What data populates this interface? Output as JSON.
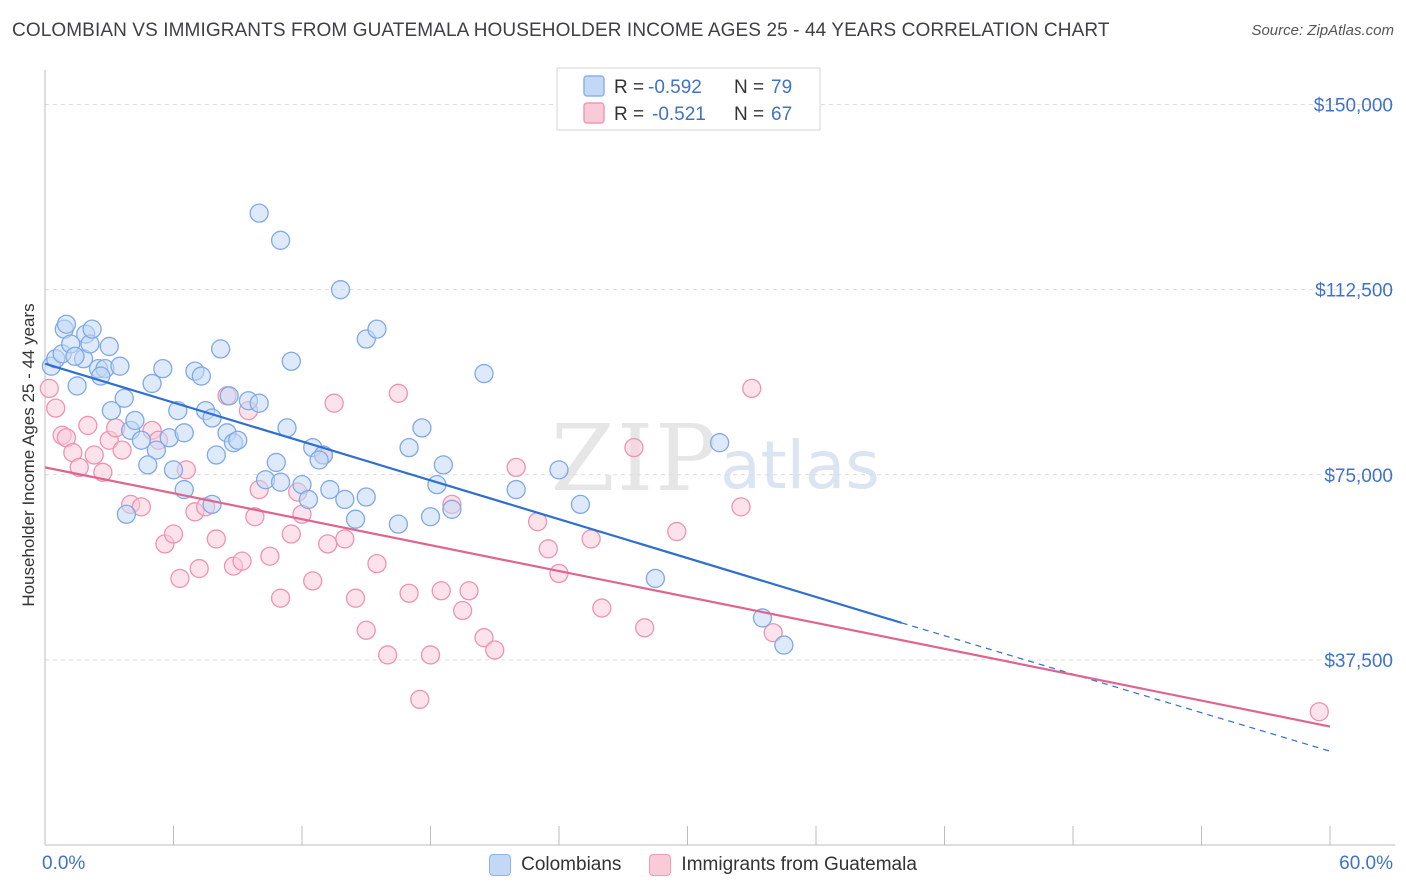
{
  "title": "COLOMBIAN VS IMMIGRANTS FROM GUATEMALA HOUSEHOLDER INCOME AGES 25 - 44 YEARS CORRELATION CHART",
  "source": "Source: ZipAtlas.com",
  "watermark": {
    "zip": "ZIP",
    "atlas": "atlas"
  },
  "colors": {
    "blue_fill": "#c3d8f6",
    "blue_stroke": "#7fa9e6",
    "blue_line": "#2f6fcf",
    "pink_fill": "#f9cbd9",
    "pink_stroke": "#ef93b0",
    "pink_line": "#e0658e",
    "axis_label": "#3f73c9",
    "grid": "#dcdcdc"
  },
  "legend": {
    "blue": {
      "r_label": "R =",
      "r_value": "-0.592",
      "n_label": "N =",
      "n_value": "79"
    },
    "pink": {
      "r_label": "R =",
      "r_value": "-0.521",
      "n_label": "N =",
      "n_value": "67"
    }
  },
  "chart_data": {
    "type": "scatter",
    "ylabel": "Householder Income Ages 25 - 44 years",
    "xlim": [
      0,
      60
    ],
    "ylim": [
      0,
      157000
    ],
    "x_tick_labels": [
      "0.0%",
      "60.0%"
    ],
    "y_ticks": [
      37500,
      75000,
      112500,
      150000
    ],
    "y_tick_labels": [
      "$37,500",
      "$75,000",
      "$112,500",
      "$150,000"
    ],
    "grid": "horizontal dashed",
    "legend_position": "top-center",
    "series": [
      {
        "name": "Colombians",
        "color": "#7fa9e6",
        "trend": {
          "x0": 0,
          "y0": 97500,
          "x1": 40,
          "y1": 45000,
          "dash_to_x": 60,
          "dash_to_y": 19000
        },
        "points": [
          [
            0.3,
            97000
          ],
          [
            0.5,
            98500
          ],
          [
            0.8,
            99500
          ],
          [
            0.9,
            104500
          ],
          [
            1.0,
            105500
          ],
          [
            1.2,
            101500
          ],
          [
            1.5,
            93000
          ],
          [
            1.8,
            98500
          ],
          [
            1.9,
            103500
          ],
          [
            2.1,
            101500
          ],
          [
            2.2,
            104500
          ],
          [
            2.5,
            96500
          ],
          [
            2.8,
            96500
          ],
          [
            3.0,
            101000
          ],
          [
            3.5,
            97000
          ],
          [
            3.7,
            90500
          ],
          [
            4.0,
            84000
          ],
          [
            4.2,
            86000
          ],
          [
            4.5,
            82000
          ],
          [
            5.0,
            93500
          ],
          [
            5.5,
            96500
          ],
          [
            5.8,
            82500
          ],
          [
            6.2,
            88000
          ],
          [
            6.5,
            83500
          ],
          [
            7.0,
            96000
          ],
          [
            7.3,
            95000
          ],
          [
            7.5,
            88000
          ],
          [
            7.8,
            86500
          ],
          [
            8.0,
            79000
          ],
          [
            8.2,
            100500
          ],
          [
            8.5,
            83500
          ],
          [
            8.8,
            81500
          ],
          [
            9.5,
            90000
          ],
          [
            10.0,
            89500
          ],
          [
            10.3,
            74000
          ],
          [
            10.8,
            77500
          ],
          [
            11.0,
            73500
          ],
          [
            11.3,
            84500
          ],
          [
            11.5,
            98000
          ],
          [
            12.0,
            73000
          ],
          [
            12.3,
            70000
          ],
          [
            12.5,
            80500
          ],
          [
            13.0,
            79000
          ],
          [
            13.3,
            72000
          ],
          [
            14.0,
            70000
          ],
          [
            15.0,
            102500
          ],
          [
            15.5,
            104500
          ],
          [
            13.8,
            112500
          ],
          [
            17.0,
            80500
          ],
          [
            17.6,
            84500
          ],
          [
            18.0,
            66500
          ],
          [
            18.3,
            73000
          ],
          [
            18.6,
            77000
          ],
          [
            19.0,
            68000
          ],
          [
            20.5,
            95500
          ],
          [
            11.0,
            122500
          ],
          [
            10.0,
            128000
          ],
          [
            22.0,
            72000
          ],
          [
            24.0,
            76000
          ],
          [
            25.0,
            69000
          ],
          [
            28.5,
            54000
          ],
          [
            31.5,
            81500
          ],
          [
            33.5,
            46000
          ],
          [
            34.5,
            40500
          ],
          [
            3.8,
            67000
          ],
          [
            6.5,
            72000
          ],
          [
            7.8,
            69000
          ],
          [
            12.8,
            78000
          ],
          [
            15.0,
            70500
          ],
          [
            16.5,
            65000
          ],
          [
            9.0,
            82000
          ],
          [
            5.2,
            80000
          ],
          [
            4.8,
            77000
          ],
          [
            2.6,
            95000
          ],
          [
            3.1,
            88000
          ],
          [
            6.0,
            76000
          ],
          [
            8.6,
            91000
          ],
          [
            14.5,
            66000
          ],
          [
            1.4,
            99000
          ]
        ]
      },
      {
        "name": "Immigrants from Guatemala",
        "color": "#ef93b0",
        "trend": {
          "x0": 0,
          "y0": 76500,
          "x1": 60,
          "y1": 24000
        },
        "points": [
          [
            0.2,
            92500
          ],
          [
            0.5,
            88500
          ],
          [
            0.8,
            83000
          ],
          [
            1.0,
            82500
          ],
          [
            1.3,
            79500
          ],
          [
            1.6,
            76500
          ],
          [
            2.0,
            85000
          ],
          [
            2.3,
            79000
          ],
          [
            2.7,
            75500
          ],
          [
            3.0,
            82000
          ],
          [
            3.3,
            84500
          ],
          [
            3.6,
            80000
          ],
          [
            4.0,
            69000
          ],
          [
            4.5,
            68500
          ],
          [
            5.0,
            84000
          ],
          [
            5.3,
            82000
          ],
          [
            5.6,
            61000
          ],
          [
            6.0,
            63000
          ],
          [
            6.3,
            54000
          ],
          [
            6.6,
            76000
          ],
          [
            7.0,
            67500
          ],
          [
            7.5,
            68500
          ],
          [
            8.0,
            62000
          ],
          [
            8.5,
            91000
          ],
          [
            8.8,
            56500
          ],
          [
            9.2,
            57500
          ],
          [
            9.5,
            88000
          ],
          [
            10.0,
            72000
          ],
          [
            10.5,
            58500
          ],
          [
            11.0,
            50000
          ],
          [
            11.5,
            63000
          ],
          [
            12.0,
            67000
          ],
          [
            12.5,
            53500
          ],
          [
            13.0,
            79000
          ],
          [
            13.5,
            89500
          ],
          [
            14.0,
            62000
          ],
          [
            14.5,
            50000
          ],
          [
            15.0,
            43500
          ],
          [
            15.5,
            57000
          ],
          [
            16.0,
            38500
          ],
          [
            16.5,
            91500
          ],
          [
            17.0,
            51000
          ],
          [
            17.5,
            29500
          ],
          [
            18.0,
            38500
          ],
          [
            18.5,
            51500
          ],
          [
            19.0,
            69000
          ],
          [
            19.5,
            47500
          ],
          [
            19.8,
            51500
          ],
          [
            20.5,
            42000
          ],
          [
            21.0,
            39500
          ],
          [
            22.0,
            76500
          ],
          [
            23.0,
            65500
          ],
          [
            23.5,
            60000
          ],
          [
            24.0,
            55000
          ],
          [
            25.5,
            62000
          ],
          [
            26.0,
            48000
          ],
          [
            28.0,
            44000
          ],
          [
            29.5,
            63500
          ],
          [
            32.5,
            68500
          ],
          [
            33.0,
            92500
          ],
          [
            34.0,
            43000
          ],
          [
            59.5,
            27000
          ],
          [
            27.5,
            80500
          ],
          [
            9.8,
            66500
          ],
          [
            7.2,
            56000
          ],
          [
            11.8,
            71500
          ],
          [
            13.2,
            61000
          ]
        ]
      }
    ]
  },
  "bottom_legend": [
    {
      "label": "Colombians"
    },
    {
      "label": "Immigrants from Guatemala"
    }
  ]
}
